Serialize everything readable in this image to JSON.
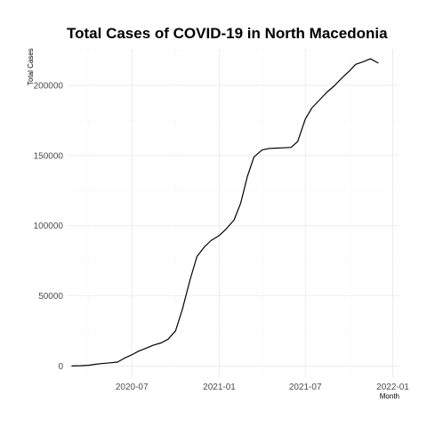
{
  "chart_data": {
    "type": "line",
    "title": "Total Cases of COVID-19 in North Macedonia",
    "xlabel": "Month",
    "ylabel": "Total Cases",
    "xlim": [
      "2020-02-15",
      "2022-01-15"
    ],
    "ylim": [
      -8000,
      226000
    ],
    "x_ticks": [
      "2020-07-01",
      "2021-01-01",
      "2021-07-01",
      "2022-01-01"
    ],
    "x_tick_labels": [
      "2020-07",
      "2021-01",
      "2021-07",
      "2022-01"
    ],
    "y_ticks": [
      0,
      50000,
      100000,
      150000,
      200000
    ],
    "y_tick_labels": [
      "0",
      "50000",
      "100000",
      "150000",
      "200000"
    ],
    "grid": true,
    "legend": "none",
    "series": [
      {
        "color": "#000000",
        "x": [
          "2020-02-26",
          "2020-03-15",
          "2020-04-01",
          "2020-04-15",
          "2020-05-01",
          "2020-05-15",
          "2020-06-01",
          "2020-06-15",
          "2020-07-01",
          "2020-07-15",
          "2020-08-01",
          "2020-08-15",
          "2020-09-01",
          "2020-09-15",
          "2020-10-01",
          "2020-10-15",
          "2020-11-01",
          "2020-11-15",
          "2020-12-01",
          "2020-12-15",
          "2021-01-01",
          "2021-01-15",
          "2021-02-01",
          "2021-02-15",
          "2021-03-01",
          "2021-03-15",
          "2021-04-01",
          "2021-04-15",
          "2021-05-01",
          "2021-05-15",
          "2021-06-01",
          "2021-06-15",
          "2021-07-01",
          "2021-07-15",
          "2021-08-01",
          "2021-08-15",
          "2021-09-01",
          "2021-09-15",
          "2021-10-01",
          "2021-10-15",
          "2021-11-01",
          "2021-11-15",
          "2021-12-01"
        ],
        "y": [
          1,
          180,
          500,
          1200,
          1800,
          2200,
          2800,
          5500,
          8000,
          10500,
          12800,
          14800,
          16500,
          19000,
          25000,
          40000,
          62000,
          78000,
          85000,
          89500,
          93000,
          97500,
          104000,
          116000,
          135000,
          149000,
          154000,
          155000,
          155300,
          155500,
          155800,
          160000,
          176000,
          184000,
          190000,
          195000,
          200000,
          205000,
          210000,
          215000,
          217000,
          219000,
          216000
        ]
      }
    ]
  }
}
